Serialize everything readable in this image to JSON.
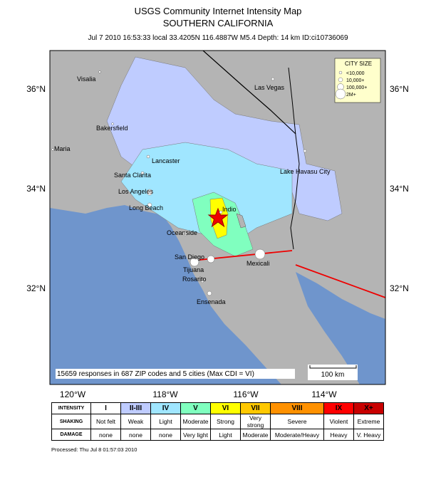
{
  "header": {
    "title": "USGS Community Internet Intensity Map",
    "subtitle": "SOUTHERN CALIFORNIA",
    "info": "Jul 7 2010 16:53:33 local 33.4205N 116.4887W M5.4 Depth: 14 km ID:ci10736069"
  },
  "map": {
    "lat_labels": [
      "36°N",
      "34°N",
      "32°N"
    ],
    "lon_labels": [
      "120°W",
      "118°W",
      "116°W",
      "114°W"
    ],
    "cities": [
      "Visalia",
      "Las Vegas",
      "Bakersfield",
      "Maria",
      "Lancaster",
      "Santa Clarita",
      "Los Angeles",
      "Lake Havasu City",
      "Indio",
      "Long Beach",
      "Oceanside",
      "San Diego",
      "Mexicali",
      "Tijuana",
      "Rosarito",
      "Ensenada"
    ],
    "city_size": {
      "title": "CITY SIZE",
      "entries": [
        "<10,000",
        "10,000+",
        "100,000+",
        "2M+"
      ]
    },
    "summary": "15659 responses in 687 ZIP codes and 5 cities (Max CDI = VI)",
    "scale": "100 km"
  },
  "legend": {
    "row_labels": [
      "INTENSITY",
      "SHAKING",
      "DAMAGE"
    ],
    "intensity": [
      "I",
      "II-III",
      "IV",
      "V",
      "VI",
      "VII",
      "VIII",
      "IX",
      "X+"
    ],
    "shaking": [
      "Not felt",
      "Weak",
      "Light",
      "Moderate",
      "Strong",
      "Very strong",
      "Severe",
      "Violent",
      "Extreme"
    ],
    "damage": [
      "none",
      "none",
      "none",
      "Very light",
      "Light",
      "Moderate",
      "Moderate/Heavy",
      "Heavy",
      "V. Heavy"
    ]
  },
  "footer": "Processed: Thu Jul  8 01:57:03 2010"
}
